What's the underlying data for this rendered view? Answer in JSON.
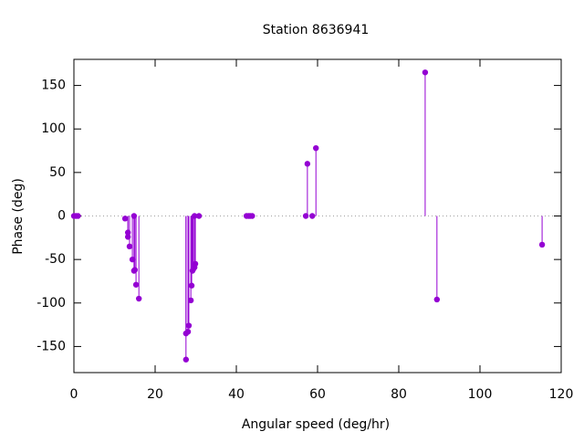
{
  "chart_data": {
    "type": "stem",
    "title": "Station 8636941",
    "x_label": "Angular speed (deg/hr)",
    "y_label": "Phase (deg)",
    "color": "#9400d3",
    "zero_line": true,
    "grid": false,
    "xlim": [
      0,
      120
    ],
    "xticks": [
      0,
      20,
      40,
      60,
      80,
      100,
      120
    ],
    "ylim": [
      -180,
      180
    ],
    "yticks": [
      -150,
      -100,
      -50,
      0,
      50,
      100,
      150
    ],
    "x": [
      0,
      0.5,
      1.0,
      12.6,
      13.3,
      13.3,
      13.7,
      14.4,
      14.8,
      14.8,
      15.0,
      15.3,
      16.0,
      27.6,
      27.6,
      28.1,
      28.3,
      28.8,
      29.0,
      29.2,
      29.4,
      29.7,
      29.7,
      29.9,
      30.8,
      42.5,
      43.0,
      43.4,
      43.9,
      57.1,
      57.5,
      58.7,
      59.6,
      86.5,
      89.4,
      115.3
    ],
    "values": [
      0,
      0,
      0,
      -3,
      -19,
      -24,
      -35,
      -50,
      0,
      -63,
      -62,
      -79,
      -95,
      -165,
      -135,
      -133,
      -126,
      -97,
      -80,
      -63,
      -61,
      0,
      -59,
      -55,
      0,
      0,
      0,
      0,
      0,
      0,
      60,
      0,
      78,
      165,
      -96,
      -33
    ]
  }
}
